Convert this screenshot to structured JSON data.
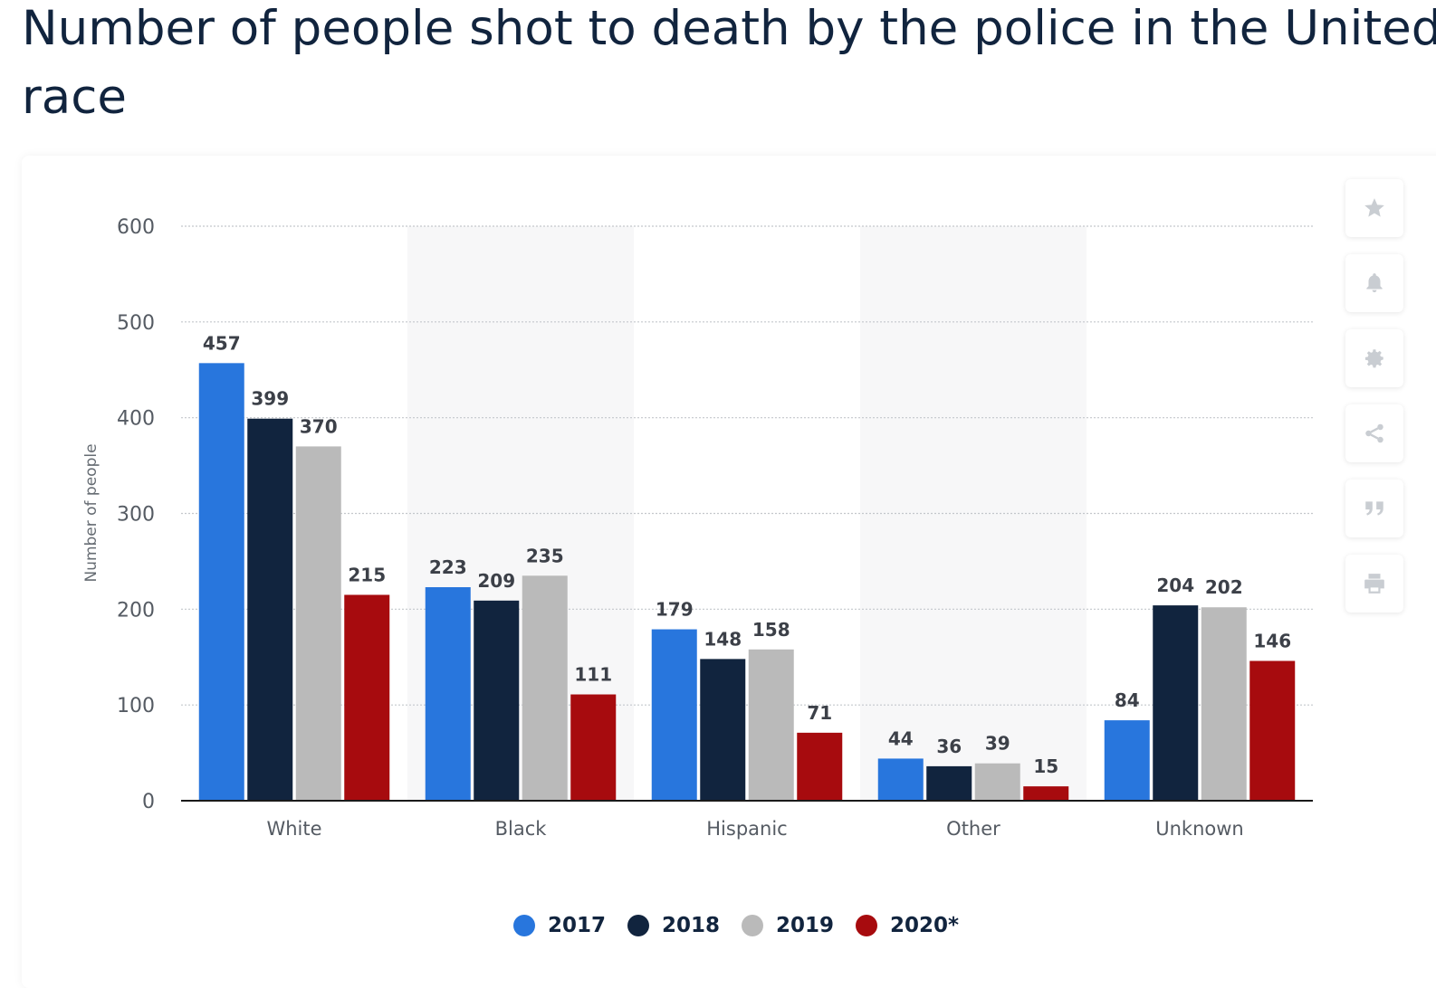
{
  "title": {
    "line1": "Number of people shot to death by the police in the United S",
    "line2": "race"
  },
  "toolbar": {
    "buttons": [
      {
        "name": "favorite-button",
        "icon": "star-icon"
      },
      {
        "name": "notification-button",
        "icon": "bell-icon"
      },
      {
        "name": "settings-button",
        "icon": "gear-icon"
      },
      {
        "name": "share-button",
        "icon": "share-icon"
      },
      {
        "name": "cite-button",
        "icon": "quote-icon"
      },
      {
        "name": "print-button",
        "icon": "printer-icon"
      }
    ]
  },
  "chart_data": {
    "type": "bar",
    "title": "Number of people shot to death by the police in the United S race",
    "xlabel": "",
    "ylabel": "Number of people",
    "ylim": [
      0,
      600
    ],
    "yticks": [
      0,
      100,
      200,
      300,
      400,
      500,
      600
    ],
    "grid": true,
    "legend_position": "bottom",
    "categories": [
      "White",
      "Black",
      "Hispanic",
      "Other",
      "Unknown"
    ],
    "series": [
      {
        "name": "2017",
        "color": "#2876dd",
        "values": [
          457,
          223,
          179,
          44,
          84
        ]
      },
      {
        "name": "2018",
        "color": "#11243e",
        "values": [
          399,
          209,
          148,
          36,
          204
        ]
      },
      {
        "name": "2019",
        "color": "#bababa",
        "values": [
          370,
          235,
          158,
          39,
          202
        ]
      },
      {
        "name": "2020*",
        "color": "#a70b0e",
        "values": [
          215,
          111,
          71,
          15,
          146
        ]
      }
    ]
  }
}
